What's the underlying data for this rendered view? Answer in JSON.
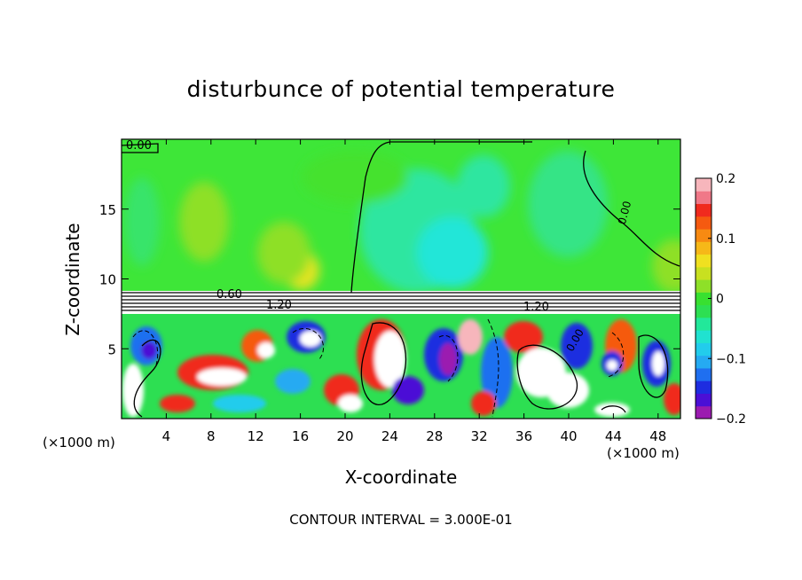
{
  "chart_data": {
    "type": "heatmap",
    "title": "disturbunce of potential temperature",
    "xlabel": "X-coordinate",
    "ylabel": "Z-coordinate",
    "x_unit_left": "(×1000 m)",
    "x_unit_right": "(×1000 m)",
    "xlim": [
      0,
      50
    ],
    "ylim": [
      0,
      20
    ],
    "x_ticks": [
      4,
      8,
      12,
      16,
      20,
      24,
      28,
      32,
      36,
      40,
      44,
      48
    ],
    "x_tick_labels": [
      "4",
      "8",
      "12",
      "16",
      "20",
      "24",
      "28",
      "32",
      "36",
      "40",
      "44",
      "48"
    ],
    "y_ticks": [
      5,
      10,
      15
    ],
    "y_tick_labels": [
      "5",
      "10",
      "15"
    ],
    "colorbar": {
      "range": [
        -0.2,
        0.2
      ],
      "tick_values": [
        0.2,
        0.1,
        0,
        -0.1,
        -0.2
      ],
      "tick_labels": [
        "0.2",
        "0.1",
        "0",
        "−0.1",
        "−0.2"
      ],
      "colors": [
        "#9b1bb0",
        "#4b0fd6",
        "#1e2de0",
        "#1f6ff0",
        "#25aaf2",
        "#22ccec",
        "#20e2d0",
        "#22e89a",
        "#2ddf52",
        "#38e030",
        "#8ee028",
        "#c8e020",
        "#f0e020",
        "#f6b818",
        "#f78a12",
        "#f55a10",
        "#f02a1e",
        "#f07888",
        "#f7b6bc"
      ]
    },
    "contour_labels": [
      "0.00",
      "0.60",
      "1.20",
      "1.20",
      "0.00",
      "0.00"
    ],
    "contour_interval_text": "CONTOUR INTERVAL = 3.000E-01",
    "regions": [
      {
        "zone": "upper atmosphere z 9–20",
        "dominant_value": 0.0,
        "note": "mostly near-zero (green) with cyan/negative patch around x 26–36 and yellow positive patch near x 14–16, z 9–12"
      },
      {
        "zone": "inversion layer z 7.5–9",
        "dominant_value": "large positive",
        "note": "white band with dense contours labeled 0.60 and 1.20"
      },
      {
        "zone": "boundary layer z 0–7.5",
        "dominant_value": "mixed ±0.2",
        "note": "strong turbulent red/white and blue/purple eddies"
      }
    ]
  }
}
